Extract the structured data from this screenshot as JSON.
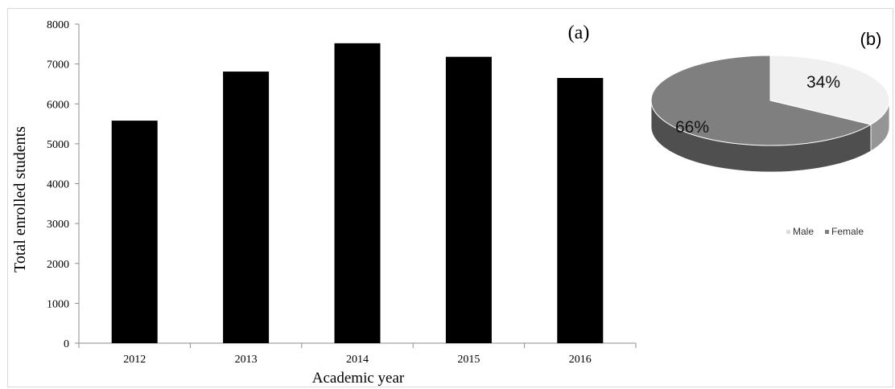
{
  "chart_data": [
    {
      "type": "bar",
      "panel_label": "(a)",
      "categories": [
        "2012",
        "2013",
        "2014",
        "2015",
        "2016"
      ],
      "values": [
        5580,
        6810,
        7520,
        7180,
        6650
      ],
      "xlabel": "Academic year",
      "ylabel": "Total enrolled students",
      "ylim": [
        0,
        8000
      ],
      "yticks": [
        "0",
        "1000",
        "2000",
        "3000",
        "4000",
        "5000",
        "6000",
        "7000",
        "8000"
      ],
      "grid": false,
      "bar_color": "#000000"
    },
    {
      "type": "pie",
      "panel_label": "(b)",
      "labels": [
        "Male",
        "Female"
      ],
      "values": [
        34,
        66
      ],
      "value_labels": [
        "34%",
        "66%"
      ],
      "colors": [
        "#f0f0f0",
        "#7f7f7f"
      ],
      "legend_position": "bottom"
    }
  ]
}
